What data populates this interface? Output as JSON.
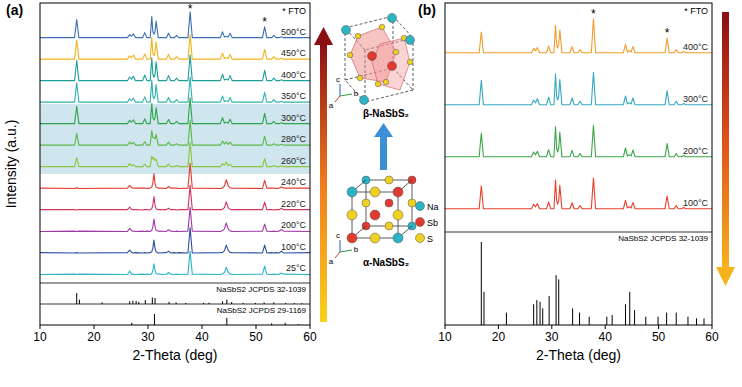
{
  "chart_data": [
    {
      "type": "line",
      "title": "(a)",
      "x_label": "2-Theta (deg)",
      "y_label": "Intensity (a.u.)",
      "xlim": [
        10,
        60
      ],
      "xticks": [
        10,
        20,
        30,
        40,
        50,
        60
      ],
      "ylim": [
        0,
        100
      ],
      "tick_labels": "x",
      "x": [
        10,
        16.4,
        16.8,
        17.2,
        26.2,
        26.6,
        26.95,
        27.3,
        27.7,
        29,
        29.4,
        29.8,
        30.4,
        30.7,
        30.9,
        31.1,
        31.3,
        31.5,
        31.9,
        33.4,
        33.8,
        34.2,
        34.9,
        35.3,
        35.7,
        37.4,
        37.8,
        38.2,
        43.4,
        43.8,
        44.15,
        44.5,
        44.85,
        45.2,
        45.6,
        51.2,
        51.6,
        52,
        52.9,
        53.3,
        53.7,
        54.3,
        54.7,
        55.1,
        60
      ],
      "highlight": [
        "260°C",
        "280°C",
        "300°C"
      ],
      "series": [
        {
          "name": "25°C",
          "color": "#2bb5c9",
          "values": [
            2,
            3,
            2,
            3,
            2,
            14,
            4,
            3,
            2,
            3,
            2,
            3,
            2,
            5,
            16,
            40,
            16,
            5,
            3,
            2,
            9,
            3,
            2,
            3,
            2,
            3,
            85,
            3,
            2,
            4,
            9,
            28,
            9,
            4,
            2,
            3,
            32,
            3,
            2,
            3,
            2,
            3,
            7,
            3,
            2
          ]
        },
        {
          "name": "100°C",
          "color": "#2e4fa0",
          "values": [
            3,
            2,
            3,
            2,
            3,
            12,
            4,
            2,
            3,
            2,
            3,
            2,
            3,
            6,
            20,
            48,
            18,
            6,
            2,
            3,
            8,
            2,
            3,
            2,
            3,
            2,
            92,
            2,
            3,
            4,
            10,
            30,
            11,
            4,
            3,
            2,
            30,
            2,
            3,
            2,
            3,
            2,
            8,
            2,
            3
          ]
        },
        {
          "name": "200°C",
          "color": "#a23aa6",
          "values": [
            2,
            3,
            2,
            3,
            2,
            13,
            5,
            3,
            2,
            3,
            2,
            3,
            2,
            6,
            19,
            46,
            19,
            6,
            3,
            2,
            8,
            3,
            2,
            3,
            2,
            3,
            88,
            3,
            2,
            5,
            11,
            32,
            10,
            4,
            2,
            3,
            28,
            3,
            2,
            3,
            2,
            3,
            9,
            3,
            2
          ]
        },
        {
          "name": "220°C",
          "color": "#d2345e",
          "values": [
            3,
            3,
            2,
            3,
            3,
            12,
            4,
            3,
            3,
            2,
            3,
            3,
            2,
            7,
            20,
            50,
            20,
            6,
            3,
            3,
            8,
            3,
            3,
            2,
            3,
            3,
            90,
            3,
            3,
            4,
            10,
            31,
            10,
            4,
            3,
            3,
            30,
            3,
            3,
            2,
            3,
            3,
            8,
            3,
            3
          ]
        },
        {
          "name": "240°C",
          "color": "#e53b2e",
          "values": [
            3,
            2,
            4,
            2,
            3,
            13,
            5,
            3,
            3,
            3,
            3,
            2,
            3,
            7,
            22,
            55,
            20,
            7,
            3,
            2,
            9,
            3,
            3,
            3,
            2,
            3,
            92,
            3,
            2,
            4,
            11,
            33,
            11,
            4,
            3,
            2,
            31,
            3,
            3,
            3,
            2,
            3,
            8,
            3,
            3
          ]
        },
        {
          "name": "260°C",
          "color": "#8cc63e",
          "values": [
            3,
            3,
            35,
            3,
            3,
            14,
            6,
            10,
            3,
            3,
            12,
            3,
            3,
            40,
            30,
            35,
            25,
            30,
            3,
            3,
            12,
            3,
            3,
            7,
            3,
            3,
            90,
            3,
            3,
            14,
            8,
            20,
            6,
            12,
            3,
            3,
            32,
            3,
            3,
            7,
            3,
            3,
            6,
            3,
            3
          ]
        },
        {
          "name": "280°C",
          "color": "#5cb84a",
          "values": [
            3,
            3,
            45,
            3,
            3,
            14,
            7,
            13,
            3,
            3,
            15,
            3,
            3,
            55,
            30,
            30,
            25,
            42,
            3,
            3,
            14,
            3,
            3,
            8,
            3,
            3,
            92,
            3,
            3,
            18,
            7,
            15,
            6,
            14,
            3,
            3,
            35,
            3,
            3,
            8,
            3,
            3,
            6,
            3,
            3
          ]
        },
        {
          "name": "300°C",
          "color": "#2ea44f",
          "values": [
            3,
            3,
            65,
            3,
            3,
            15,
            8,
            17,
            3,
            3,
            20,
            3,
            3,
            75,
            25,
            16,
            24,
            60,
            3,
            3,
            18,
            3,
            3,
            11,
            3,
            3,
            95,
            3,
            3,
            24,
            5,
            8,
            5,
            19,
            3,
            3,
            40,
            3,
            3,
            11,
            3,
            3,
            6,
            3,
            3
          ]
        },
        {
          "name": "350°C",
          "color": "#2fb3b0",
          "values": [
            3,
            3,
            72,
            3,
            3,
            15,
            8,
            18,
            3,
            3,
            22,
            3,
            3,
            82,
            25,
            15,
            25,
            66,
            3,
            3,
            20,
            3,
            3,
            12,
            3,
            3,
            92,
            3,
            3,
            25,
            5,
            8,
            5,
            20,
            3,
            3,
            38,
            3,
            3,
            12,
            3,
            3,
            6,
            3,
            3
          ]
        },
        {
          "name": "400°C",
          "color": "#1f9e9a",
          "values": [
            3,
            3,
            75,
            3,
            3,
            16,
            8,
            19,
            3,
            3,
            23,
            3,
            3,
            85,
            26,
            15,
            26,
            70,
            3,
            3,
            21,
            3,
            3,
            12,
            3,
            3,
            95,
            3,
            3,
            26,
            5,
            8,
            5,
            21,
            3,
            3,
            40,
            3,
            3,
            12,
            3,
            3,
            6,
            3,
            3
          ]
        },
        {
          "name": "450°C",
          "color": "#f2b41c",
          "values": [
            3,
            3,
            70,
            3,
            3,
            15,
            8,
            18,
            3,
            3,
            22,
            3,
            3,
            80,
            25,
            15,
            25,
            65,
            3,
            3,
            20,
            3,
            3,
            12,
            3,
            3,
            90,
            3,
            3,
            25,
            5,
            8,
            5,
            20,
            3,
            3,
            38,
            3,
            3,
            12,
            3,
            3,
            6,
            3,
            3
          ]
        },
        {
          "name": "500°C",
          "color": "#3c6fb5",
          "values": [
            3,
            3,
            68,
            3,
            3,
            14,
            8,
            17,
            3,
            3,
            21,
            3,
            3,
            78,
            24,
            15,
            24,
            62,
            3,
            3,
            19,
            3,
            3,
            11,
            3,
            3,
            95,
            3,
            3,
            24,
            5,
            8,
            5,
            19,
            3,
            3,
            42,
            3,
            3,
            11,
            3,
            3,
            6,
            3,
            3
          ]
        },
        {
          "name": "NaSbS2 JCPDS 32-1039",
          "type": "bar",
          "color": "#000000",
          "x": [
            16.8,
            17.3,
            21.5,
            26.6,
            27.2,
            27.8,
            28.3,
            29.5,
            30.8,
            31.3,
            33.9,
            35.2,
            37,
            40.3,
            41.3,
            43.8,
            44.6,
            45.5,
            47.6,
            49.9,
            51.5,
            53.3,
            55.5,
            57.1,
            58.5
          ],
          "values": [
            100,
            40,
            15,
            25,
            30,
            28,
            20,
            35,
            60,
            55,
            20,
            15,
            10,
            10,
            12,
            25,
            40,
            18,
            10,
            10,
            15,
            15,
            10,
            8,
            8
          ]
        },
        {
          "name": "NaSbS2 JCPDS 29-1169",
          "type": "bar",
          "color": "#000000",
          "x": [
            27,
            31.2,
            44.6,
            52.9,
            55.4,
            57.9
          ],
          "values": [
            20,
            100,
            65,
            15,
            20,
            8
          ]
        }
      ],
      "annotations": [
        {
          "text": "* FTO"
        },
        {
          "text": "*",
          "x": 37.8
        },
        {
          "text": "*",
          "x": 51.6
        }
      ]
    },
    {
      "type": "line",
      "title": "(b)",
      "x_label": "2-Theta (deg)",
      "xlim": [
        10,
        60
      ],
      "xticks": [
        10,
        20,
        30,
        40,
        50,
        60
      ],
      "ylim": [
        0,
        100
      ],
      "tick_labels": "x",
      "x": [
        10,
        16.4,
        16.8,
        17.2,
        26.2,
        26.6,
        26.95,
        27.3,
        27.7,
        29,
        29.4,
        29.8,
        30.4,
        30.7,
        30.9,
        31.1,
        31.3,
        31.5,
        31.9,
        33.4,
        33.8,
        34.2,
        34.9,
        35.3,
        35.7,
        37.4,
        37.8,
        38.2,
        43.4,
        43.8,
        44.15,
        44.5,
        44.85,
        45.2,
        45.6,
        51.2,
        51.6,
        52,
        52.9,
        53.3,
        53.7,
        54.3,
        54.7,
        55.1,
        60
      ],
      "series": [
        {
          "name": "100°C",
          "color": "#e8412a",
          "values": [
            3,
            3,
            60,
            3,
            3,
            14,
            8,
            16,
            3,
            3,
            20,
            3,
            3,
            75,
            24,
            15,
            24,
            62,
            3,
            3,
            18,
            3,
            3,
            11,
            3,
            3,
            80,
            3,
            3,
            24,
            5,
            8,
            5,
            19,
            3,
            3,
            35,
            3,
            3,
            11,
            3,
            3,
            6,
            3,
            3
          ]
        },
        {
          "name": "200°C",
          "color": "#3aa64a",
          "values": [
            3,
            3,
            62,
            3,
            3,
            15,
            8,
            17,
            3,
            3,
            21,
            3,
            3,
            78,
            25,
            15,
            25,
            64,
            3,
            3,
            19,
            3,
            3,
            11,
            3,
            3,
            82,
            3,
            3,
            25,
            5,
            8,
            5,
            20,
            3,
            3,
            36,
            3,
            3,
            11,
            3,
            3,
            6,
            3,
            3
          ]
        },
        {
          "name": "300°C",
          "color": "#35a9c0",
          "values": [
            3,
            3,
            64,
            3,
            3,
            15,
            8,
            18,
            3,
            3,
            22,
            3,
            3,
            80,
            25,
            15,
            25,
            66,
            3,
            3,
            20,
            3,
            3,
            12,
            3,
            3,
            84,
            3,
            3,
            25,
            5,
            8,
            5,
            20,
            3,
            3,
            38,
            3,
            3,
            12,
            3,
            3,
            6,
            3,
            3
          ]
        },
        {
          "name": "400°C",
          "color": "#f39b2a",
          "values": [
            3,
            3,
            55,
            3,
            3,
            14,
            8,
            16,
            3,
            3,
            20,
            3,
            3,
            72,
            24,
            15,
            24,
            60,
            3,
            3,
            18,
            3,
            3,
            11,
            3,
            3,
            88,
            3,
            3,
            24,
            5,
            8,
            5,
            19,
            3,
            3,
            40,
            3,
            3,
            11,
            3,
            3,
            6,
            3,
            3
          ]
        },
        {
          "name": "NaSbS2 JCPDS 32-1039",
          "type": "bar",
          "color": "#000000",
          "x": [
            16.8,
            17.3,
            21.5,
            26.6,
            27.2,
            27.8,
            28.3,
            29.5,
            30.8,
            31.3,
            33.9,
            35.2,
            37,
            40.3,
            41.3,
            43.8,
            44.6,
            45.5,
            47.6,
            49.9,
            51.5,
            53.3,
            55.5,
            57.1,
            58.5
          ],
          "values": [
            100,
            40,
            15,
            25,
            30,
            28,
            20,
            35,
            60,
            55,
            20,
            15,
            10,
            10,
            12,
            25,
            40,
            18,
            10,
            10,
            15,
            15,
            10,
            8,
            8
          ]
        }
      ],
      "annotations": [
        {
          "text": "* FTO"
        },
        {
          "text": "*",
          "x": 37.8
        },
        {
          "text": "*",
          "x": 51.6
        }
      ]
    }
  ],
  "diagram": {
    "beta_label": "β-NaSbS₂",
    "alpha_label": "α-NaSbS₂",
    "legend": [
      "Na",
      "Sb",
      "S"
    ],
    "axes": [
      "a",
      "b",
      "c"
    ]
  }
}
